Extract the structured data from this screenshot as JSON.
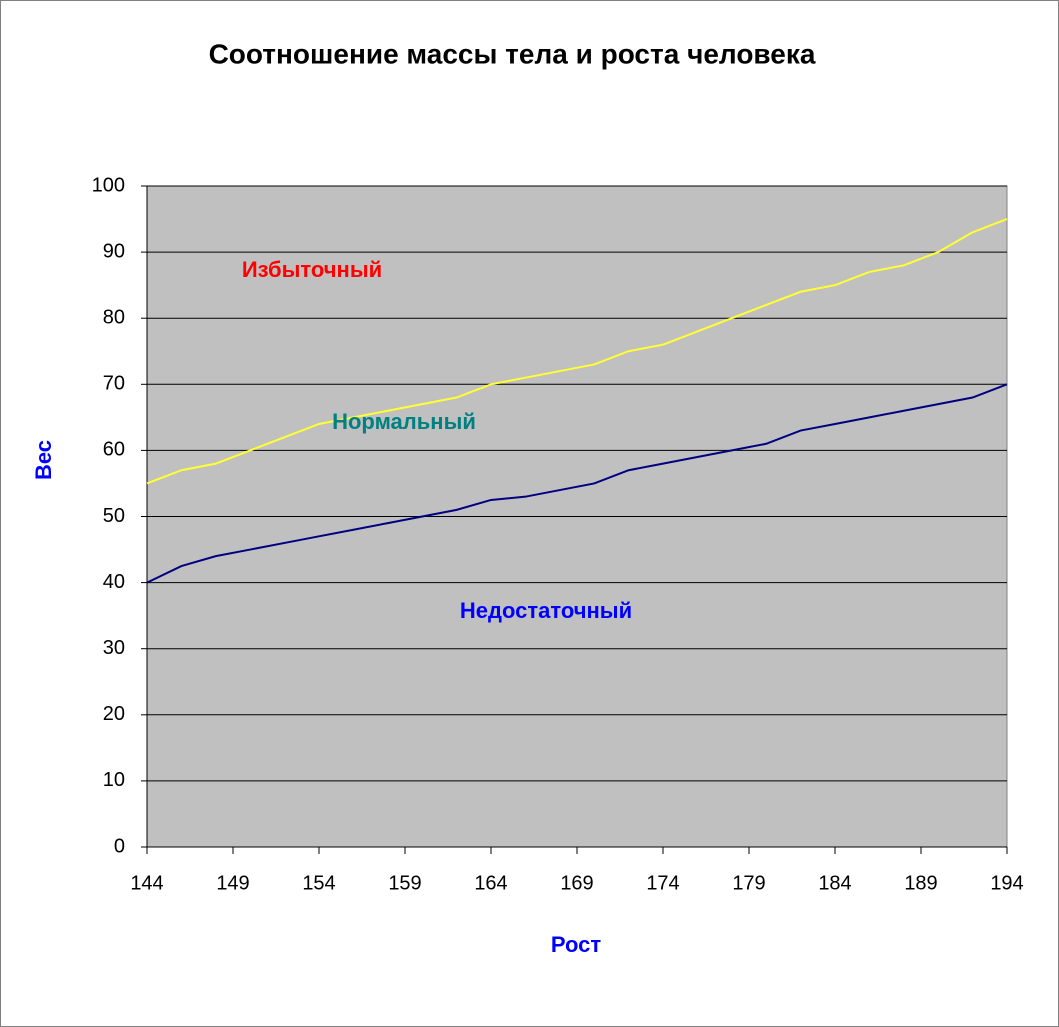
{
  "chart_data": {
    "type": "line",
    "title": "Соотношение массы тела и роста человека",
    "x_label": "Рост",
    "y_label": "Вес",
    "x": [
      144,
      146,
      148,
      150,
      152,
      154,
      156,
      158,
      160,
      162,
      164,
      166,
      168,
      170,
      172,
      174,
      176,
      178,
      180,
      182,
      184,
      186,
      188,
      190,
      192,
      194
    ],
    "series": [
      {
        "color": "#ffff33",
        "values": [
          55,
          57,
          58,
          60,
          62,
          64,
          65,
          66,
          67,
          68,
          70,
          71,
          72,
          73,
          75,
          76,
          78,
          80,
          82,
          84,
          85,
          87,
          88,
          90,
          93,
          95
        ]
      },
      {
        "color": "#000080",
        "values": [
          40,
          42.5,
          44,
          45,
          46,
          47,
          48,
          49,
          50,
          51,
          52.5,
          53,
          54,
          55,
          57,
          58,
          59,
          60,
          61,
          63,
          64,
          65,
          66,
          67,
          68,
          70
        ]
      }
    ],
    "annotations": [
      {
        "text": "Избыточный",
        "color": "#ff0000"
      },
      {
        "text": "Нормальный",
        "color": "#008080"
      },
      {
        "text": "Недостаточный",
        "color": "#0000ff"
      }
    ],
    "xlim": [
      144,
      194
    ],
    "ylim": [
      0,
      100
    ],
    "xticks": [
      144,
      149,
      154,
      159,
      164,
      169,
      174,
      179,
      184,
      189,
      194
    ],
    "yticks": [
      0,
      10,
      20,
      30,
      40,
      50,
      60,
      70,
      80,
      90,
      100
    ],
    "grid": true,
    "plot_background": "#c0c0c0"
  }
}
